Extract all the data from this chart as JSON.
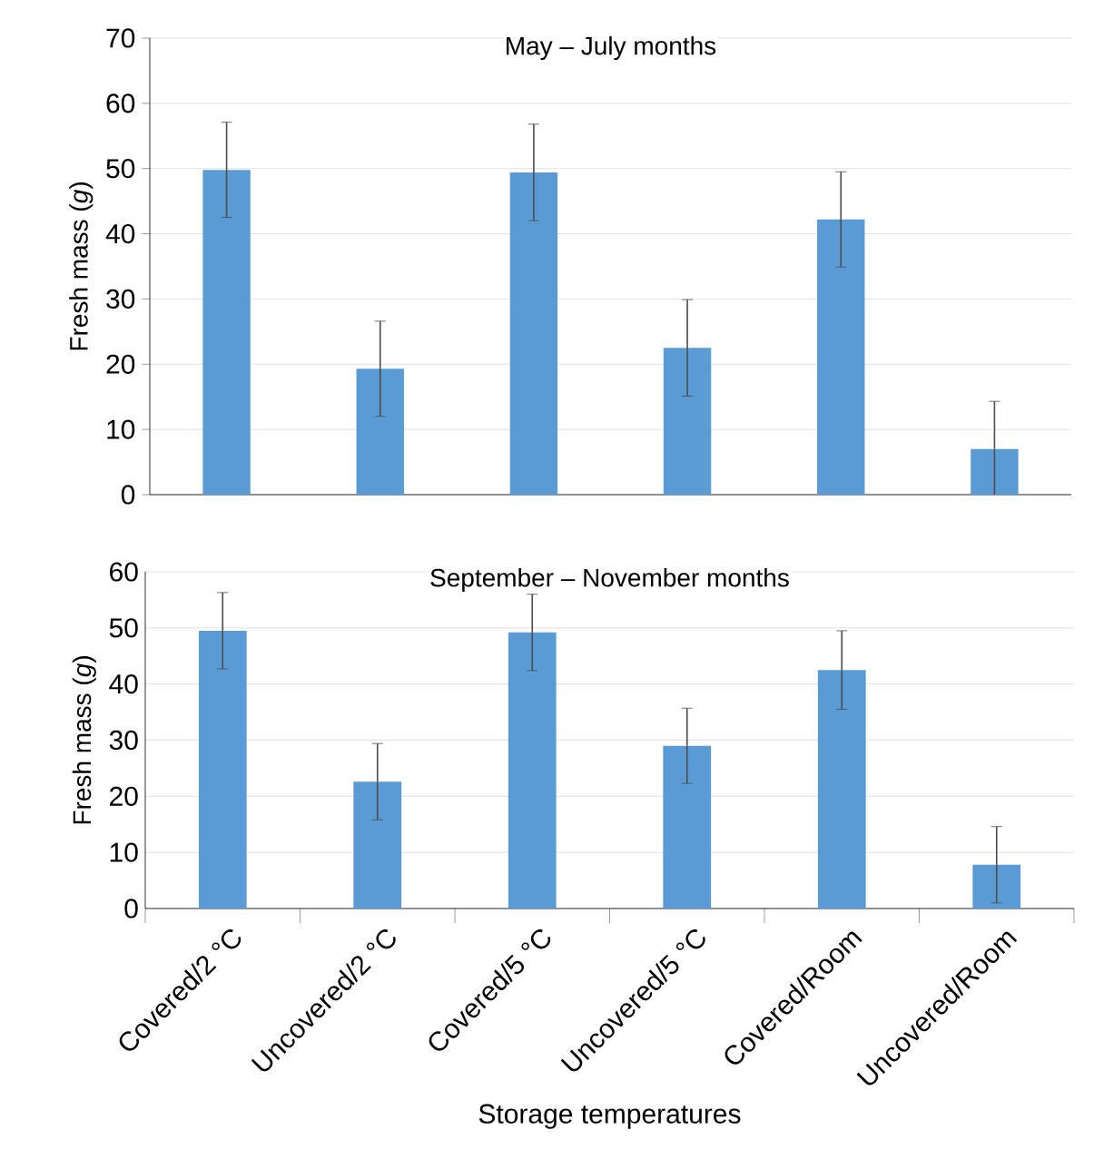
{
  "chart_data": [
    {
      "type": "bar",
      "title": "May – July months",
      "ylabel": "Fresh mass (*g*)",
      "categories": [
        null,
        null,
        null,
        null,
        null,
        null
      ],
      "values": [
        49.8,
        19.3,
        49.4,
        22.5,
        42.2,
        7.0
      ],
      "errors": [
        7.3,
        7.3,
        7.4,
        7.4,
        7.3,
        7.3
      ],
      "color": "#5b9bd5",
      "ylim": [
        0,
        70
      ],
      "yticks": [
        0,
        10,
        20,
        30,
        40,
        50,
        60,
        70
      ],
      "grid": "y",
      "tick_labels": "y"
    },
    {
      "type": "bar",
      "title": "September – November months",
      "xlabel": "Storage temperatures",
      "ylabel": "Fresh mass (*g*)",
      "categories": [
        "Covered/2 °C",
        "Uncovered/2 °C",
        "Covered/5 °C",
        "Uncovered/5 °C",
        "Covered/Room",
        "Uncovered/Room"
      ],
      "values": [
        49.5,
        22.6,
        49.2,
        29.0,
        42.5,
        7.8
      ],
      "errors": [
        6.8,
        6.8,
        6.8,
        6.7,
        7.0,
        6.8
      ],
      "color": "#5b9bd5",
      "ylim": [
        0,
        60
      ],
      "yticks": [
        0,
        10,
        20,
        30,
        40,
        50,
        60
      ],
      "grid": "y"
    }
  ]
}
